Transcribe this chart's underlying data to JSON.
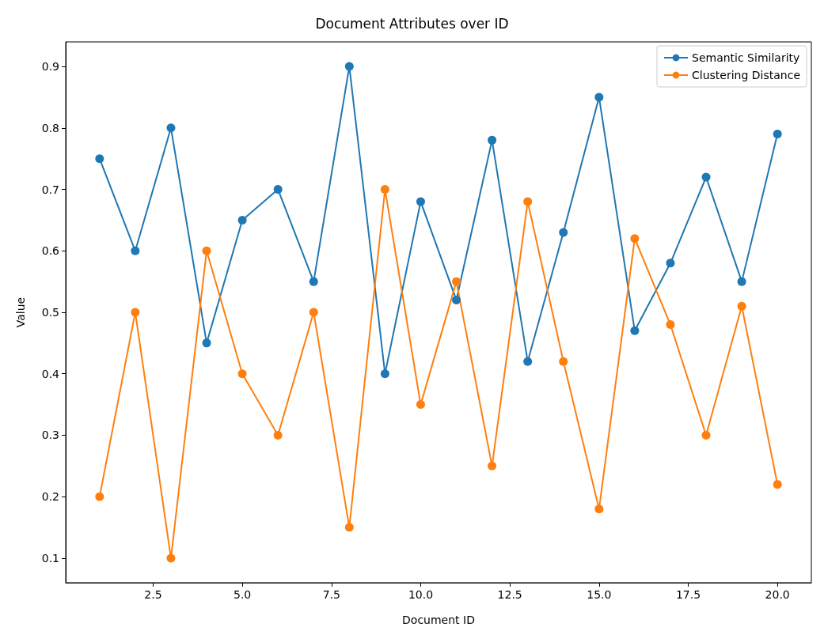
{
  "chart_data": {
    "type": "line",
    "title": "Document Attributes over ID",
    "xlabel": "Document ID",
    "ylabel": "Value",
    "x": [
      1,
      2,
      3,
      4,
      5,
      6,
      7,
      8,
      9,
      10,
      11,
      12,
      13,
      14,
      15,
      16,
      17,
      18,
      19,
      20
    ],
    "series": [
      {
        "name": "Semantic Similarity",
        "color": "#1f77b4",
        "values": [
          0.75,
          0.6,
          0.8,
          0.45,
          0.65,
          0.7,
          0.55,
          0.9,
          0.4,
          0.68,
          0.52,
          0.78,
          0.42,
          0.63,
          0.85,
          0.47,
          0.58,
          0.72,
          0.55,
          0.79
        ]
      },
      {
        "name": "Clustering Distance",
        "color": "#ff7f0e",
        "values": [
          0.2,
          0.5,
          0.1,
          0.6,
          0.4,
          0.3,
          0.5,
          0.15,
          0.7,
          0.35,
          0.55,
          0.25,
          0.68,
          0.42,
          0.18,
          0.62,
          0.48,
          0.3,
          0.51,
          0.22
        ]
      }
    ],
    "xlim": [
      0.05,
      20.95
    ],
    "xticks": [
      2.5,
      {
        "value": 5,
        "label": "5.0"
      },
      7.5,
      {
        "value": 10,
        "label": "10.0"
      },
      12.5,
      {
        "value": 15,
        "label": "15.0"
      },
      17.5,
      {
        "value": 20,
        "label": "20.0"
      }
    ],
    "ylim": [
      0.06,
      0.94
    ],
    "yticks": [
      0.1,
      0.2,
      0.3,
      0.4,
      0.5,
      0.6,
      0.7,
      0.8,
      0.9
    ],
    "legend": "top right",
    "marker": "circle",
    "line_style": "solid",
    "grid": false
  }
}
